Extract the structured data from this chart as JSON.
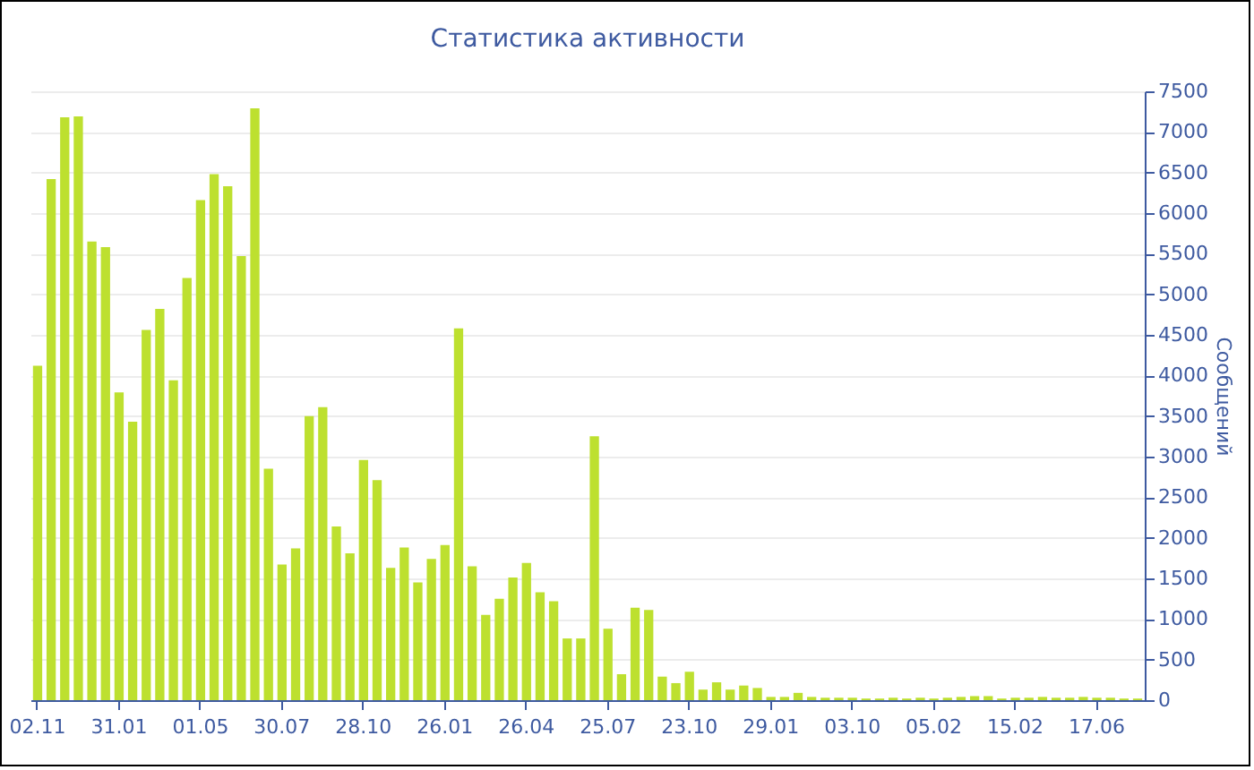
{
  "chart_data": {
    "type": "bar",
    "title": "Статистика активности",
    "ylabel": "Сообщений",
    "categories": [
      "02.11",
      null,
      null,
      null,
      null,
      null,
      "31.01",
      null,
      null,
      null,
      null,
      null,
      "01.05",
      null,
      null,
      null,
      null,
      null,
      "30.07",
      null,
      null,
      null,
      null,
      null,
      "28.10",
      null,
      null,
      null,
      null,
      null,
      "26.01",
      null,
      null,
      null,
      null,
      null,
      "26.04",
      null,
      null,
      null,
      null,
      null,
      "25.07",
      null,
      null,
      null,
      null,
      null,
      "23.10",
      null,
      null,
      null,
      null,
      null,
      "29.01",
      null,
      null,
      null,
      null,
      null,
      "03.10",
      null,
      null,
      null,
      null,
      null,
      "05.02",
      null,
      null,
      null,
      null,
      null,
      "15.02",
      null,
      null,
      null,
      null,
      null,
      "17.06",
      null,
      null,
      null
    ],
    "values": [
      4120,
      6420,
      7180,
      7190,
      5650,
      5580,
      3790,
      3430,
      4560,
      4820,
      3940,
      5200,
      6160,
      6480,
      6330,
      5470,
      7290,
      2850,
      1670,
      1870,
      3500,
      3610,
      2140,
      1810,
      2960,
      2710,
      1630,
      1880,
      1450,
      1740,
      1910,
      4580,
      1650,
      1050,
      1250,
      1510,
      1690,
      1330,
      1220,
      760,
      760,
      3250,
      880,
      320,
      1140,
      1110,
      290,
      210,
      350,
      130,
      220,
      130,
      180,
      150,
      40,
      40,
      90,
      40,
      30,
      30,
      30,
      20,
      20,
      30,
      20,
      30,
      20,
      30,
      40,
      50,
      50,
      20,
      30,
      30,
      40,
      30,
      30,
      40,
      30,
      30,
      20,
      20
    ],
    "color": "#bde02f",
    "ylim": [
      0,
      7500
    ],
    "yticks": [
      0,
      500,
      1000,
      1500,
      2000,
      2500,
      3000,
      3500,
      4000,
      4500,
      5000,
      5500,
      6000,
      6500,
      7000,
      7500
    ],
    "grid": "y"
  }
}
